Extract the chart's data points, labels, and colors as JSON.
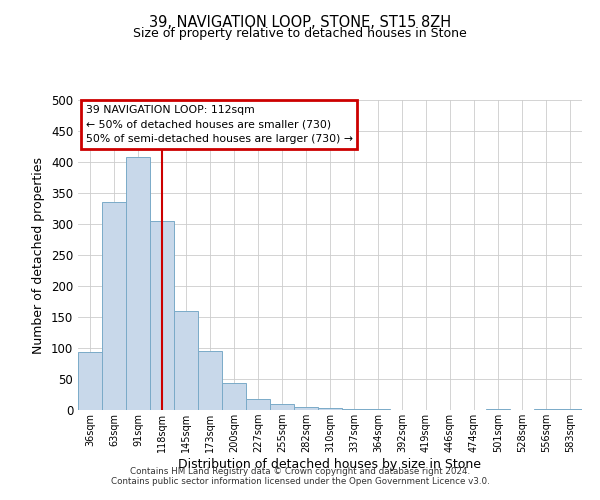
{
  "title": "39, NAVIGATION LOOP, STONE, ST15 8ZH",
  "subtitle": "Size of property relative to detached houses in Stone",
  "xlabel": "Distribution of detached houses by size in Stone",
  "ylabel": "Number of detached properties",
  "bin_labels": [
    "36sqm",
    "63sqm",
    "91sqm",
    "118sqm",
    "145sqm",
    "173sqm",
    "200sqm",
    "227sqm",
    "255sqm",
    "282sqm",
    "310sqm",
    "337sqm",
    "364sqm",
    "392sqm",
    "419sqm",
    "446sqm",
    "474sqm",
    "501sqm",
    "528sqm",
    "556sqm",
    "583sqm"
  ],
  "bar_heights": [
    93,
    336,
    408,
    305,
    160,
    95,
    44,
    17,
    10,
    5,
    3,
    1,
    1,
    0,
    0,
    0,
    0,
    2,
    0,
    2,
    2
  ],
  "bar_color": "#c8d8ea",
  "bar_edge_color": "#7aaac8",
  "vline_x_index": 3,
  "vline_color": "#cc0000",
  "annotation_title": "39 NAVIGATION LOOP: 112sqm",
  "annotation_line1": "← 50% of detached houses are smaller (730)",
  "annotation_line2": "50% of semi-detached houses are larger (730) →",
  "annotation_box_edgecolor": "#cc0000",
  "ylim": [
    0,
    500
  ],
  "yticks": [
    0,
    50,
    100,
    150,
    200,
    250,
    300,
    350,
    400,
    450,
    500
  ],
  "footer_line1": "Contains HM Land Registry data © Crown copyright and database right 2024.",
  "footer_line2": "Contains public sector information licensed under the Open Government Licence v3.0.",
  "bg_color": "#ffffff",
  "grid_color": "#cccccc"
}
